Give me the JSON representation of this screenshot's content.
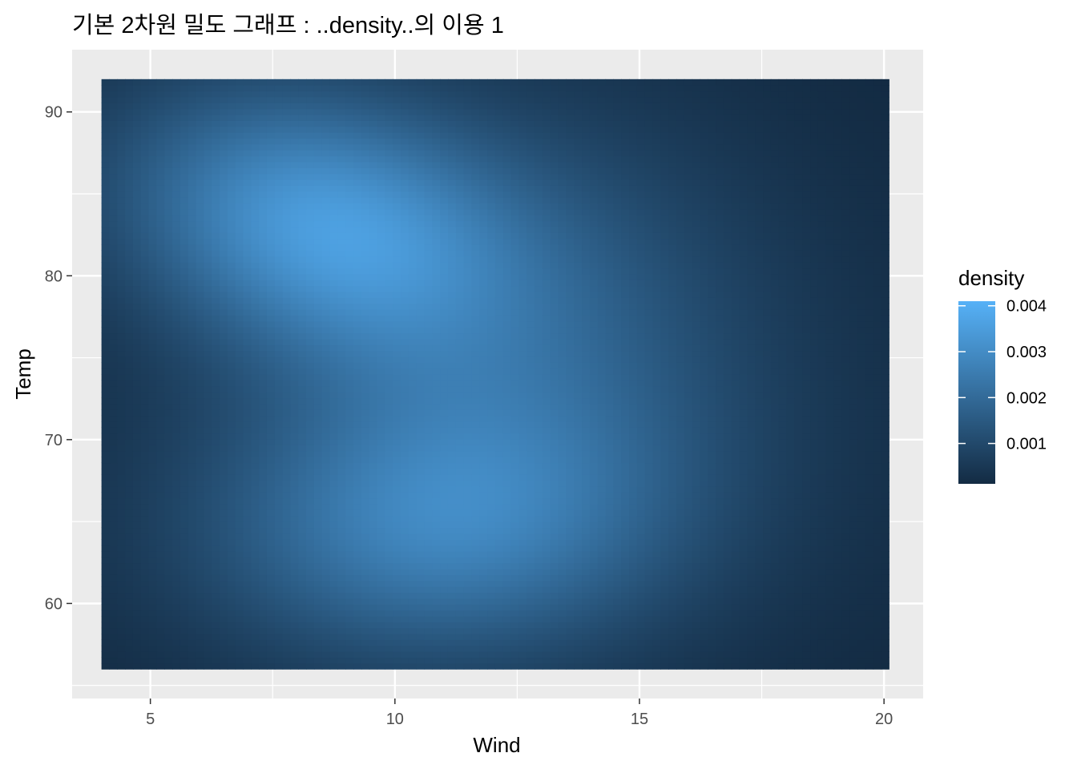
{
  "chart_data": {
    "type": "heatmap",
    "title": "기본 2차원 밀도 그래프 : ..density..의 이용 1",
    "xlabel": "Wind",
    "ylabel": "Temp",
    "x_range": [
      4.0,
      20.1
    ],
    "y_range": [
      56,
      92
    ],
    "xlim": [
      3.4,
      20.8
    ],
    "ylim": [
      54.2,
      93.8
    ],
    "x_ticks": [
      5,
      10,
      15,
      20
    ],
    "y_ticks": [
      60,
      70,
      80,
      90
    ],
    "fill": {
      "name": "density",
      "low_color": "#132B43",
      "high_color": "#56B1F7",
      "range": [
        0.00012,
        0.0041
      ],
      "breaks": [
        0.001,
        0.002,
        0.003,
        0.004
      ],
      "break_labels": [
        "0.001",
        "0.002",
        "0.003",
        "0.004"
      ]
    },
    "density_peaks": [
      {
        "x": 8.5,
        "y": 83,
        "density": 0.0041
      },
      {
        "x": 10.8,
        "y": 65,
        "density": 0.0031
      }
    ],
    "grid": true,
    "legend_position": "right",
    "panel_background": "#EBEBEB"
  }
}
